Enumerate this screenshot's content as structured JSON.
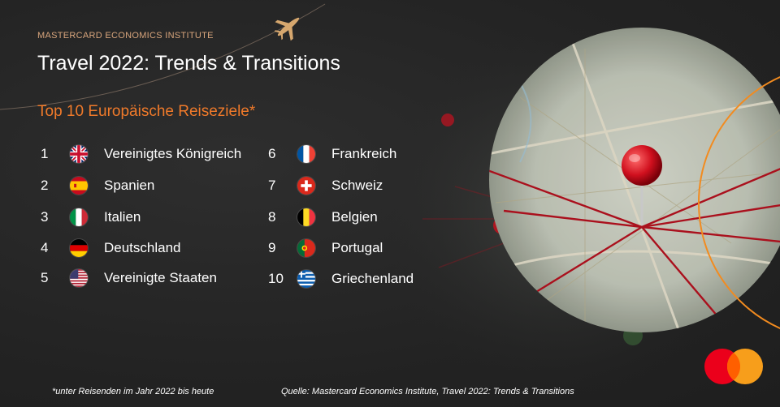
{
  "header": {
    "kicker": "MASTERCARD ECONOMICS INSTITUTE",
    "title": "Travel 2022: Trends & Transitions",
    "subtitle": "Top 10 Europäische Reiseziele*"
  },
  "destinations": [
    {
      "rank": "1",
      "country": "Vereinigtes Königreich",
      "flag": "uk-flag-icon"
    },
    {
      "rank": "2",
      "country": "Spanien",
      "flag": "spain-flag-icon"
    },
    {
      "rank": "3",
      "country": "Italien",
      "flag": "italy-flag-icon"
    },
    {
      "rank": "4",
      "country": "Deutschland",
      "flag": "germany-flag-icon"
    },
    {
      "rank": "5",
      "country": "Vereinigte Staaten",
      "flag": "usa-flag-icon"
    },
    {
      "rank": "6",
      "country": "Frankreich",
      "flag": "france-flag-icon"
    },
    {
      "rank": "7",
      "country": "Schweiz",
      "flag": "switzerland-flag-icon"
    },
    {
      "rank": "8",
      "country": "Belgien",
      "flag": "belgium-flag-icon"
    },
    {
      "rank": "9",
      "country": "Portugal",
      "flag": "portugal-flag-icon"
    },
    {
      "rank": "10",
      "country": "Griechenland",
      "flag": "greece-flag-icon"
    }
  ],
  "footer": {
    "footnote": "*unter Reisenden im Jahr 2022 bis heute",
    "source": "Quelle: Mastercard Economics Institute, Travel 2022: Trends & Transitions"
  },
  "colors": {
    "accent_orange": "#f07a2a",
    "kicker": "#d8a57c",
    "background": "#262626",
    "mastercard_red": "#eb001b",
    "mastercard_yellow": "#f79e1b"
  },
  "icons": [
    "airplane-icon",
    "map-pin-icon",
    "mastercard-logo"
  ]
}
